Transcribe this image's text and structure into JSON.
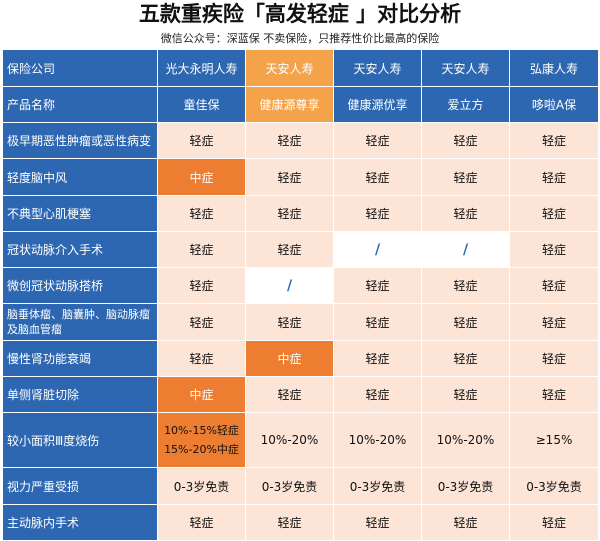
{
  "title": "五款重疾险「高发轻症 」对比分析",
  "subtitle": "微信公众号：深蓝保   不卖保险，只推荐性价比最高的保险",
  "colors": {
    "header_blue": "#2e67b1",
    "header_highlight": "#f4a34b",
    "cell_peach": "#fce4d6",
    "cell_orange": "#ed7d31",
    "cell_white": "#ffffff"
  },
  "header": {
    "company_label": "保险公司",
    "companies": [
      "光大永明人寿",
      "天安人寿",
      "天安人寿",
      "天安人寿",
      "弘康人寿"
    ],
    "product_label": "产品名称",
    "products": [
      "童佳保",
      "健康源尊享",
      "健康源优享",
      "爱立方",
      "哆啦A保"
    ]
  },
  "rows": [
    {
      "name": "极早期恶性肿瘤或恶性病变",
      "cells": [
        "轻症",
        "轻症",
        "轻症",
        "轻症",
        "轻症"
      ]
    },
    {
      "name": "轻度脑中风",
      "cells": [
        "中症",
        "轻症",
        "轻症",
        "轻症",
        "轻症"
      ]
    },
    {
      "name": "不典型心肌梗塞",
      "cells": [
        "轻症",
        "轻症",
        "轻症",
        "轻症",
        "轻症"
      ]
    },
    {
      "name": "冠状动脉介入手术",
      "cells": [
        "轻症",
        "轻症",
        "/",
        "/",
        "轻症"
      ]
    },
    {
      "name": "微创冠状动脉搭桥",
      "cells": [
        "轻症",
        "/",
        "轻症",
        "轻症",
        "轻症"
      ]
    },
    {
      "name": "脑垂体瘤、脑囊肿、脑动脉瘤及脑血管瘤",
      "cells": [
        "轻症",
        "轻症",
        "轻症",
        "轻症",
        "轻症"
      ]
    },
    {
      "name": "慢性肾功能衰竭",
      "cells": [
        "轻症",
        "中症",
        "轻症",
        "轻症",
        "轻症"
      ]
    },
    {
      "name": "单侧肾脏切除",
      "cells": [
        "中症",
        "轻症",
        "轻症",
        "轻症",
        "轻症"
      ]
    },
    {
      "name": "较小面积Ⅲ度烧伤",
      "cells": [
        "10%-15%轻症\n15%-20%中症",
        "10%-20%",
        "10%-20%",
        "10%-20%",
        "≥15%"
      ]
    },
    {
      "name": "视力严重受损",
      "cells": [
        "0-3岁免责",
        "0-3岁免责",
        "0-3岁免责",
        "0-3岁免责",
        "0-3岁免责"
      ]
    },
    {
      "name": "主动脉内手术",
      "cells": [
        "轻症",
        "轻症",
        "轻症",
        "轻症",
        "轻症"
      ]
    }
  ]
}
